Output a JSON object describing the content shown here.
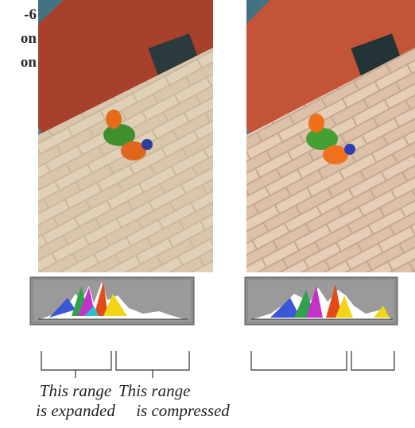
{
  "caption": {
    "lines": [
      "-6",
      "on",
      "on"
    ]
  },
  "labels": [
    {
      "line1": "This range",
      "line2": "is expanded"
    },
    {
      "line1": "This range",
      "line2": "is compressed"
    }
  ]
}
